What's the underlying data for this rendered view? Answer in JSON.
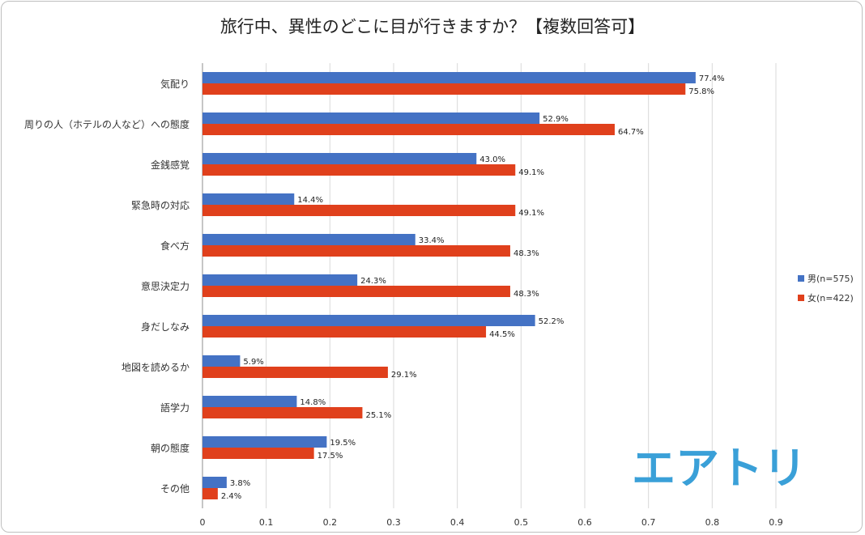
{
  "chart_data": {
    "type": "bar",
    "orientation": "horizontal",
    "title": "旅行中、異性のどこに目が行きますか？【複数回答可】",
    "categories": [
      "気配り",
      "周りの人（ホテルの人など）への態度",
      "金銭感覚",
      "緊急時の対応",
      "食べ方",
      "意思決定力",
      "身だしなみ",
      "地図を読めるか",
      "語学力",
      "朝の態度",
      "その他"
    ],
    "series": [
      {
        "name": "男(n=575)",
        "color": "#4472c4",
        "values": [
          0.774,
          0.529,
          0.43,
          0.144,
          0.334,
          0.243,
          0.522,
          0.059,
          0.148,
          0.195,
          0.038
        ],
        "labels": [
          "77.4%",
          "52.9%",
          "43.0%",
          "14.4%",
          "33.4%",
          "24.3%",
          "52.2%",
          "5.9%",
          "14.8%",
          "19.5%",
          "3.8%"
        ]
      },
      {
        "name": "女(n=422)",
        "color": "#e0401c",
        "values": [
          0.758,
          0.647,
          0.491,
          0.491,
          0.483,
          0.483,
          0.445,
          0.291,
          0.251,
          0.175,
          0.024
        ],
        "labels": [
          "75.8%",
          "64.7%",
          "49.1%",
          "49.1%",
          "48.3%",
          "48.3%",
          "44.5%",
          "29.1%",
          "25.1%",
          "17.5%",
          "2.4%"
        ]
      }
    ],
    "xlim": [
      0,
      0.9
    ],
    "xticks": [
      0,
      0.1,
      0.2,
      0.3,
      0.4,
      0.5,
      0.6,
      0.7,
      0.8,
      0.9
    ],
    "xtick_labels": [
      "0",
      "0.1",
      "0.2",
      "0.3",
      "0.4",
      "0.5",
      "0.6",
      "0.7",
      "0.8",
      "0.9"
    ],
    "grid": true,
    "legend": "right"
  },
  "logo": {
    "text": "エアトリ",
    "color": "#3aa0d8"
  }
}
